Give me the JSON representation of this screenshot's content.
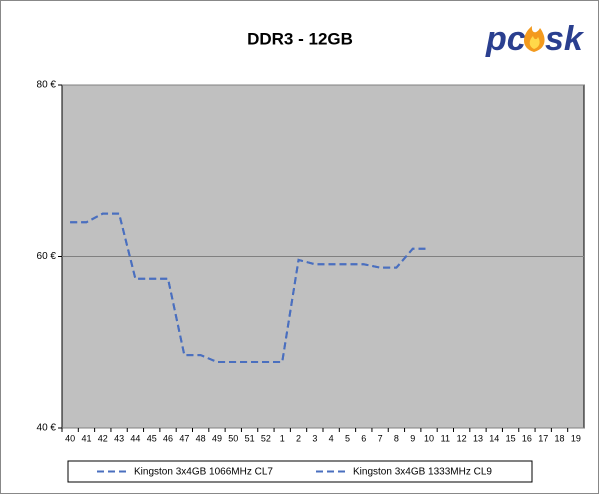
{
  "chart_data": {
    "type": "line",
    "title": "DDR3 - 12GB",
    "logo": {
      "left": "pc",
      "right": "sk"
    },
    "categories": [
      "40",
      "41",
      "42",
      "43",
      "44",
      "45",
      "46",
      "47",
      "48",
      "49",
      "50",
      "51",
      "52",
      "1",
      "2",
      "3",
      "4",
      "5",
      "6",
      "7",
      "8",
      "9",
      "10",
      "11",
      "12",
      "13",
      "14",
      "15",
      "16",
      "17",
      "18",
      "19"
    ],
    "series": [
      {
        "name": "Kingston 3x4GB 1066MHz CL7",
        "color": "#4a6fbf",
        "values": [
          64,
          64,
          65,
          65,
          57.4,
          57.4,
          57.4,
          48.5,
          48.5,
          47.7,
          47.7,
          47.7,
          47.7,
          47.7,
          59.6,
          59.1,
          59.1,
          59.1,
          59.1,
          58.7,
          58.7,
          60.9,
          60.9,
          null,
          null,
          null,
          null,
          null,
          null,
          null,
          null,
          null
        ]
      },
      {
        "name": "Kingston 3x4GB 1333MHz CL9",
        "color": "#4a6fbf",
        "values": [
          64,
          64,
          65,
          65,
          57.4,
          57.4,
          57.4,
          48.5,
          48.5,
          47.7,
          47.7,
          47.7,
          47.7,
          47.7,
          59.6,
          59.1,
          59.1,
          59.1,
          59.1,
          58.7,
          58.7,
          60.9,
          60.9,
          null,
          null,
          null,
          null,
          null,
          null,
          null,
          null,
          null
        ]
      }
    ],
    "ylim": [
      40,
      80
    ],
    "yticks": [
      {
        "value": 40,
        "label": "40 €"
      },
      {
        "value": 60,
        "label": "60 €"
      },
      {
        "value": 80,
        "label": "80 €"
      }
    ],
    "grid": true
  }
}
